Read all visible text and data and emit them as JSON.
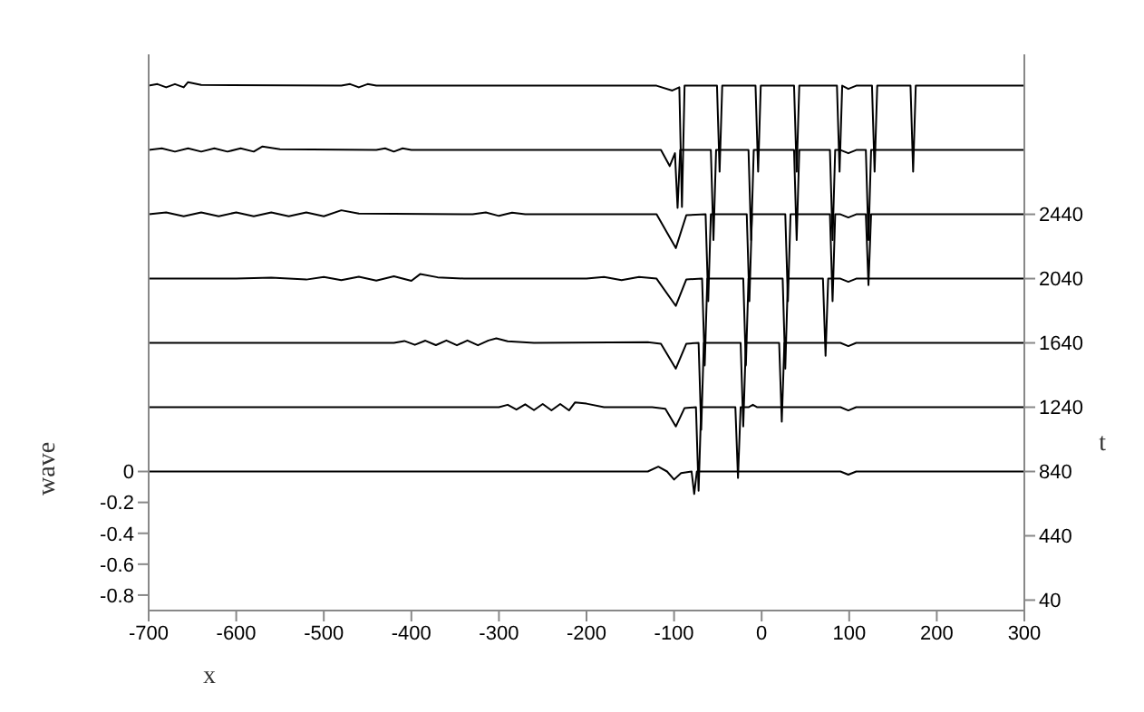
{
  "chart_data": {
    "type": "line",
    "xlabel": "x",
    "ylabel": "wave",
    "y2label": "t",
    "xlim": [
      -700,
      300
    ],
    "xticks": [
      -700,
      -600,
      -500,
      -400,
      -300,
      -200,
      -100,
      0,
      100,
      200,
      300
    ],
    "ylim": [
      -0.9,
      2.7
    ],
    "yticks": [
      -0.8,
      -0.6,
      -0.4,
      -0.2,
      0
    ],
    "y2lim": [
      -25,
      3435
    ],
    "y2ticks": [
      40,
      440,
      840,
      1240,
      1640,
      2040,
      2440
    ],
    "grid": false,
    "legend": false,
    "marker": "none",
    "line_style": "solid",
    "series": [
      {
        "color": "#000000",
        "axis": "y2",
        "x": [
          -700,
          -130,
          -118,
          -108,
          -100,
          -92,
          -80,
          -77,
          -74,
          -60,
          90,
          99,
          108,
          300
        ],
        "values": [
          840,
          840,
          870,
          840,
          790,
          830,
          840,
          700,
          840,
          840,
          840,
          820,
          840,
          840
        ]
      },
      {
        "color": "#000000",
        "axis": "y2",
        "x": [
          -700,
          -300,
          -290,
          -280,
          -270,
          -260,
          -250,
          -240,
          -230,
          -220,
          -213,
          -200,
          -180,
          -125,
          -110,
          -98,
          -88,
          -75,
          -72,
          -69,
          -30,
          -27,
          -24,
          -15,
          -10,
          -5,
          90,
          99,
          108,
          300
        ],
        "values": [
          1240,
          1240,
          1255,
          1225,
          1258,
          1222,
          1260,
          1220,
          1260,
          1220,
          1270,
          1262,
          1240,
          1240,
          1230,
          1120,
          1235,
          1240,
          720,
          1240,
          1240,
          800,
          1240,
          1240,
          1255,
          1240,
          1240,
          1220,
          1240,
          1240
        ]
      },
      {
        "color": "#000000",
        "axis": "y2",
        "x": [
          -700,
          -420,
          -408,
          -396,
          -384,
          -372,
          -360,
          -348,
          -336,
          -324,
          -312,
          -303,
          -290,
          -260,
          -130,
          -115,
          -98,
          -86,
          -72,
          -69,
          -66,
          -24,
          -21,
          -18,
          20,
          23,
          26,
          90,
          99,
          108,
          300
        ],
        "values": [
          1640,
          1640,
          1652,
          1628,
          1654,
          1626,
          1655,
          1625,
          1655,
          1625,
          1655,
          1668,
          1650,
          1640,
          1645,
          1635,
          1480,
          1635,
          1640,
          1100,
          1640,
          1640,
          1120,
          1640,
          1640,
          1150,
          1640,
          1640,
          1620,
          1640,
          1640
        ]
      },
      {
        "color": "#000000",
        "axis": "y2",
        "x": [
          -700,
          -600,
          -560,
          -520,
          -500,
          -480,
          -460,
          -440,
          -420,
          -400,
          -390,
          -370,
          -340,
          -200,
          -180,
          -160,
          -140,
          -120,
          -98,
          -86,
          -68,
          -65,
          -62,
          -21,
          -18,
          -15,
          24,
          27,
          30,
          70,
          73,
          76,
          90,
          99,
          108,
          300
        ],
        "values": [
          2040,
          2040,
          2046,
          2034,
          2050,
          2030,
          2052,
          2028,
          2054,
          2026,
          2068,
          2048,
          2040,
          2040,
          2050,
          2030,
          2050,
          2040,
          1870,
          2035,
          2040,
          1500,
          2040,
          2040,
          1500,
          2040,
          2040,
          1480,
          2040,
          2040,
          1560,
          2040,
          2040,
          2020,
          2040,
          2040
        ]
      },
      {
        "color": "#000000",
        "axis": "y2",
        "x": [
          -700,
          -680,
          -660,
          -640,
          -620,
          -600,
          -580,
          -560,
          -540,
          -520,
          -500,
          -480,
          -460,
          -330,
          -315,
          -300,
          -285,
          -270,
          -120,
          -98,
          -86,
          -64,
          -61,
          -58,
          -17,
          -14,
          -11,
          27,
          30,
          33,
          78,
          81,
          84,
          90,
          99,
          108,
          119,
          122,
          125,
          300
        ],
        "values": [
          2440,
          2452,
          2428,
          2452,
          2428,
          2452,
          2428,
          2452,
          2428,
          2452,
          2428,
          2465,
          2445,
          2440,
          2452,
          2430,
          2450,
          2440,
          2440,
          2230,
          2435,
          2440,
          1900,
          2440,
          2440,
          1900,
          2440,
          2440,
          1900,
          2440,
          2440,
          1900,
          2440,
          2440,
          2420,
          2440,
          2440,
          2000,
          2440,
          2440
        ]
      },
      {
        "color": "#000000",
        "axis": "y2",
        "x": [
          -700,
          -685,
          -670,
          -655,
          -640,
          -625,
          -610,
          -595,
          -580,
          -570,
          -550,
          -440,
          -430,
          -420,
          -410,
          -400,
          -115,
          -105,
          -99,
          -96,
          -93,
          -58,
          -55,
          -52,
          -15,
          -12,
          -9,
          37,
          40,
          43,
          78,
          81,
          84,
          90,
          99,
          108,
          119,
          122,
          125,
          300
        ],
        "values": [
          2840,
          2850,
          2830,
          2850,
          2830,
          2850,
          2830,
          2850,
          2830,
          2862,
          2845,
          2840,
          2850,
          2830,
          2850,
          2840,
          2840,
          2740,
          2820,
          2480,
          2840,
          2840,
          2280,
          2840,
          2840,
          2280,
          2840,
          2840,
          2280,
          2840,
          2840,
          2280,
          2840,
          2840,
          2820,
          2840,
          2840,
          2280,
          2840,
          2840
        ]
      },
      {
        "color": "#000000",
        "axis": "y2",
        "x": [
          -700,
          -690,
          -680,
          -670,
          -660,
          -655,
          -640,
          -480,
          -470,
          -460,
          -450,
          -440,
          -120,
          -102,
          -94,
          -91,
          -88,
          -51,
          -48,
          -45,
          -7,
          -4,
          -1,
          37,
          40,
          43,
          86,
          89,
          92,
          99,
          108,
          126,
          129,
          132,
          170,
          173,
          176,
          300
        ],
        "values": [
          3240,
          3250,
          3230,
          3250,
          3230,
          3262,
          3245,
          3240,
          3250,
          3230,
          3250,
          3240,
          3240,
          3210,
          3230,
          2485,
          3240,
          3240,
          2705,
          3240,
          3240,
          2705,
          3240,
          3240,
          2705,
          3240,
          3240,
          2705,
          3240,
          3220,
          3240,
          3240,
          2705,
          3240,
          3240,
          2705,
          3240,
          3240
        ]
      }
    ]
  }
}
